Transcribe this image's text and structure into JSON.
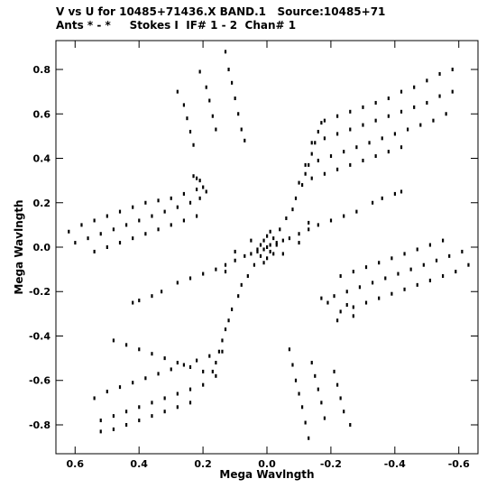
{
  "header": {
    "line1": "V vs U for 10485+71436.X BAND.1   Source:10485+71",
    "line2": "Ants * - *     Stokes I  IF# 1 - 2  Chan# 1"
  },
  "chart_data": {
    "type": "scatter",
    "xlabel": "Mega Wavlngth",
    "ylabel": "Mega Wavlngth",
    "xlim": [
      0.66,
      -0.66
    ],
    "ylim": [
      -0.93,
      0.93
    ],
    "x_reversed": true,
    "xticks": [
      {
        "v": 0.6,
        "label": "0.6"
      },
      {
        "v": 0.4,
        "label": "0.4"
      },
      {
        "v": 0.2,
        "label": "0.2"
      },
      {
        "v": 0.0,
        "label": "0.0"
      },
      {
        "v": -0.2,
        "label": "-0.2"
      },
      {
        "v": -0.4,
        "label": "-0.4"
      },
      {
        "v": -0.6,
        "label": "-0.6"
      }
    ],
    "yticks": [
      {
        "v": 0.8,
        "label": "0.8"
      },
      {
        "v": 0.6,
        "label": "0.6"
      },
      {
        "v": 0.4,
        "label": "0.4"
      },
      {
        "v": 0.2,
        "label": "0.2"
      },
      {
        "v": 0.0,
        "label": "0.0"
      },
      {
        "v": -0.2,
        "label": "-0.2"
      },
      {
        "v": -0.4,
        "label": "-0.4"
      },
      {
        "v": -0.6,
        "label": "-0.6"
      },
      {
        "v": -0.8,
        "label": "-0.8"
      }
    ],
    "grid": false,
    "marker_color": "#000000",
    "points": [
      [
        0.0,
        0.0
      ],
      [
        -0.01,
        0.01
      ],
      [
        -0.03,
        0.02
      ],
      [
        -0.05,
        0.03
      ],
      [
        -0.07,
        0.04
      ],
      [
        -0.1,
        0.06
      ],
      [
        -0.13,
        0.08
      ],
      [
        -0.16,
        0.1
      ],
      [
        -0.2,
        0.12
      ],
      [
        -0.24,
        0.14
      ],
      [
        -0.28,
        0.16
      ],
      [
        -0.33,
        0.2
      ],
      [
        -0.36,
        0.22
      ],
      [
        -0.4,
        0.24
      ],
      [
        -0.42,
        0.25
      ],
      [
        0.01,
        -0.01
      ],
      [
        0.03,
        -0.02
      ],
      [
        0.05,
        -0.03
      ],
      [
        0.07,
        -0.04
      ],
      [
        0.1,
        -0.06
      ],
      [
        0.13,
        -0.08
      ],
      [
        0.16,
        -0.1
      ],
      [
        0.2,
        -0.12
      ],
      [
        0.24,
        -0.14
      ],
      [
        0.28,
        -0.16
      ],
      [
        0.33,
        -0.2
      ],
      [
        0.36,
        -0.22
      ],
      [
        0.4,
        -0.24
      ],
      [
        0.42,
        -0.25
      ],
      [
        -0.02,
        0.04
      ],
      [
        -0.04,
        0.08
      ],
      [
        -0.06,
        0.13
      ],
      [
        -0.08,
        0.17
      ],
      [
        -0.09,
        0.22
      ],
      [
        -0.11,
        0.28
      ],
      [
        -0.12,
        0.33
      ],
      [
        -0.13,
        0.37
      ],
      [
        -0.14,
        0.42
      ],
      [
        -0.15,
        0.47
      ],
      [
        -0.16,
        0.52
      ],
      [
        -0.17,
        0.56
      ],
      [
        0.02,
        -0.04
      ],
      [
        0.04,
        -0.08
      ],
      [
        0.06,
        -0.13
      ],
      [
        0.08,
        -0.17
      ],
      [
        0.09,
        -0.22
      ],
      [
        0.11,
        -0.28
      ],
      [
        0.12,
        -0.33
      ],
      [
        0.13,
        -0.37
      ],
      [
        0.14,
        -0.42
      ],
      [
        0.15,
        -0.47
      ],
      [
        0.16,
        -0.52
      ],
      [
        0.17,
        -0.56
      ],
      [
        -0.18,
        0.57
      ],
      [
        -0.22,
        0.59
      ],
      [
        -0.26,
        0.61
      ],
      [
        -0.3,
        0.63
      ],
      [
        -0.34,
        0.65
      ],
      [
        -0.38,
        0.67
      ],
      [
        -0.42,
        0.7
      ],
      [
        -0.46,
        0.72
      ],
      [
        -0.5,
        0.75
      ],
      [
        -0.54,
        0.78
      ],
      [
        -0.58,
        0.8
      ],
      [
        -0.14,
        0.47
      ],
      [
        -0.18,
        0.49
      ],
      [
        -0.22,
        0.51
      ],
      [
        -0.26,
        0.53
      ],
      [
        -0.3,
        0.55
      ],
      [
        -0.34,
        0.57
      ],
      [
        -0.38,
        0.59
      ],
      [
        -0.42,
        0.61
      ],
      [
        -0.46,
        0.63
      ],
      [
        -0.5,
        0.65
      ],
      [
        -0.54,
        0.68
      ],
      [
        -0.58,
        0.7
      ],
      [
        -0.12,
        0.37
      ],
      [
        -0.16,
        0.39
      ],
      [
        -0.2,
        0.41
      ],
      [
        -0.24,
        0.43
      ],
      [
        -0.28,
        0.45
      ],
      [
        -0.32,
        0.47
      ],
      [
        -0.36,
        0.49
      ],
      [
        -0.4,
        0.51
      ],
      [
        -0.44,
        0.53
      ],
      [
        -0.48,
        0.55
      ],
      [
        -0.52,
        0.57
      ],
      [
        -0.56,
        0.6
      ],
      [
        -0.1,
        0.29
      ],
      [
        -0.14,
        0.31
      ],
      [
        -0.18,
        0.33
      ],
      [
        -0.22,
        0.35
      ],
      [
        -0.26,
        0.37
      ],
      [
        -0.3,
        0.39
      ],
      [
        -0.34,
        0.41
      ],
      [
        -0.38,
        0.43
      ],
      [
        -0.42,
        0.45
      ],
      [
        0.16,
        -0.58
      ],
      [
        0.2,
        -0.56
      ],
      [
        0.24,
        -0.54
      ],
      [
        0.28,
        -0.52
      ],
      [
        0.32,
        -0.5
      ],
      [
        0.36,
        -0.48
      ],
      [
        0.4,
        -0.46
      ],
      [
        0.44,
        -0.44
      ],
      [
        0.48,
        -0.42
      ],
      [
        0.14,
        -0.47
      ],
      [
        0.18,
        -0.49
      ],
      [
        0.22,
        -0.51
      ],
      [
        0.26,
        -0.53
      ],
      [
        0.3,
        -0.55
      ],
      [
        0.34,
        -0.57
      ],
      [
        0.38,
        -0.59
      ],
      [
        0.42,
        -0.61
      ],
      [
        0.46,
        -0.63
      ],
      [
        0.5,
        -0.65
      ],
      [
        0.54,
        -0.68
      ],
      [
        0.2,
        -0.62
      ],
      [
        0.24,
        -0.64
      ],
      [
        0.28,
        -0.66
      ],
      [
        0.32,
        -0.68
      ],
      [
        0.36,
        -0.7
      ],
      [
        0.4,
        -0.72
      ],
      [
        0.44,
        -0.74
      ],
      [
        0.48,
        -0.76
      ],
      [
        0.52,
        -0.78
      ],
      [
        0.24,
        -0.7
      ],
      [
        0.28,
        -0.72
      ],
      [
        0.32,
        -0.74
      ],
      [
        0.36,
        -0.76
      ],
      [
        0.4,
        -0.78
      ],
      [
        0.44,
        -0.8
      ],
      [
        0.48,
        -0.82
      ],
      [
        0.52,
        -0.83
      ],
      [
        0.62,
        0.07
      ],
      [
        0.58,
        0.1
      ],
      [
        0.54,
        0.12
      ],
      [
        0.5,
        0.14
      ],
      [
        0.46,
        0.16
      ],
      [
        0.42,
        0.18
      ],
      [
        0.38,
        0.2
      ],
      [
        0.34,
        0.21
      ],
      [
        0.3,
        0.22
      ],
      [
        0.26,
        0.24
      ],
      [
        0.22,
        0.26
      ],
      [
        0.2,
        0.27
      ],
      [
        0.6,
        0.02
      ],
      [
        0.56,
        0.04
      ],
      [
        0.52,
        0.06
      ],
      [
        0.48,
        0.08
      ],
      [
        0.44,
        0.1
      ],
      [
        0.4,
        0.12
      ],
      [
        0.36,
        0.14
      ],
      [
        0.32,
        0.16
      ],
      [
        0.28,
        0.18
      ],
      [
        0.24,
        0.2
      ],
      [
        0.21,
        0.22
      ],
      [
        0.54,
        -0.02
      ],
      [
        0.5,
        0.0
      ],
      [
        0.46,
        0.02
      ],
      [
        0.42,
        0.04
      ],
      [
        0.38,
        0.06
      ],
      [
        0.34,
        0.08
      ],
      [
        0.3,
        0.1
      ],
      [
        0.26,
        0.12
      ],
      [
        0.22,
        0.14
      ],
      [
        0.23,
        0.32
      ],
      [
        0.19,
        0.25
      ],
      [
        0.22,
        0.31
      ],
      [
        0.21,
        0.3
      ],
      [
        -0.63,
        -0.08
      ],
      [
        -0.59,
        -0.11
      ],
      [
        -0.55,
        -0.13
      ],
      [
        -0.51,
        -0.15
      ],
      [
        -0.47,
        -0.17
      ],
      [
        -0.43,
        -0.19
      ],
      [
        -0.39,
        -0.21
      ],
      [
        -0.35,
        -0.23
      ],
      [
        -0.31,
        -0.25
      ],
      [
        -0.27,
        -0.27
      ],
      [
        -0.23,
        -0.29
      ],
      [
        -0.61,
        -0.02
      ],
      [
        -0.57,
        -0.04
      ],
      [
        -0.53,
        -0.06
      ],
      [
        -0.49,
        -0.08
      ],
      [
        -0.45,
        -0.1
      ],
      [
        -0.41,
        -0.12
      ],
      [
        -0.37,
        -0.14
      ],
      [
        -0.33,
        -0.16
      ],
      [
        -0.29,
        -0.18
      ],
      [
        -0.25,
        -0.2
      ],
      [
        -0.21,
        -0.22
      ],
      [
        -0.55,
        0.03
      ],
      [
        -0.51,
        0.01
      ],
      [
        -0.47,
        -0.01
      ],
      [
        -0.43,
        -0.03
      ],
      [
        -0.39,
        -0.05
      ],
      [
        -0.35,
        -0.07
      ],
      [
        -0.31,
        -0.09
      ],
      [
        -0.27,
        -0.11
      ],
      [
        -0.23,
        -0.13
      ],
      [
        -0.22,
        -0.33
      ],
      [
        -0.27,
        -0.31
      ],
      [
        -0.25,
        -0.26
      ],
      [
        -0.19,
        -0.25
      ],
      [
        -0.17,
        -0.23
      ],
      [
        0.13,
        0.88
      ],
      [
        0.12,
        0.8
      ],
      [
        0.11,
        0.74
      ],
      [
        0.1,
        0.67
      ],
      [
        0.09,
        0.6
      ],
      [
        0.08,
        0.53
      ],
      [
        0.07,
        0.48
      ],
      [
        0.21,
        0.79
      ],
      [
        0.19,
        0.72
      ],
      [
        0.18,
        0.66
      ],
      [
        0.17,
        0.59
      ],
      [
        0.16,
        0.53
      ],
      [
        0.28,
        0.7
      ],
      [
        0.26,
        0.64
      ],
      [
        0.25,
        0.58
      ],
      [
        0.24,
        0.52
      ],
      [
        0.23,
        0.46
      ],
      [
        -0.07,
        -0.46
      ],
      [
        -0.08,
        -0.53
      ],
      [
        -0.09,
        -0.6
      ],
      [
        -0.1,
        -0.66
      ],
      [
        -0.11,
        -0.72
      ],
      [
        -0.12,
        -0.79
      ],
      [
        -0.13,
        -0.86
      ],
      [
        -0.14,
        -0.52
      ],
      [
        -0.15,
        -0.58
      ],
      [
        -0.16,
        -0.64
      ],
      [
        -0.17,
        -0.7
      ],
      [
        -0.18,
        -0.77
      ],
      [
        -0.21,
        -0.56
      ],
      [
        -0.22,
        -0.62
      ],
      [
        -0.23,
        -0.68
      ],
      [
        -0.24,
        -0.74
      ],
      [
        -0.26,
        -0.8
      ],
      [
        0.01,
        0.03
      ],
      [
        -0.02,
        -0.03
      ],
      [
        0.02,
        0.01
      ],
      [
        -0.01,
        -0.02
      ],
      [
        0.0,
        -0.05
      ],
      [
        0.0,
        0.05
      ],
      [
        0.03,
        -0.01
      ],
      [
        -0.03,
        0.01
      ],
      [
        0.01,
        -0.07
      ],
      [
        -0.01,
        0.07
      ],
      [
        0.13,
        -0.11
      ],
      [
        -0.13,
        0.11
      ],
      [
        0.05,
        0.03
      ],
      [
        -0.05,
        -0.03
      ],
      [
        0.1,
        -0.02
      ],
      [
        -0.1,
        0.02
      ]
    ]
  }
}
